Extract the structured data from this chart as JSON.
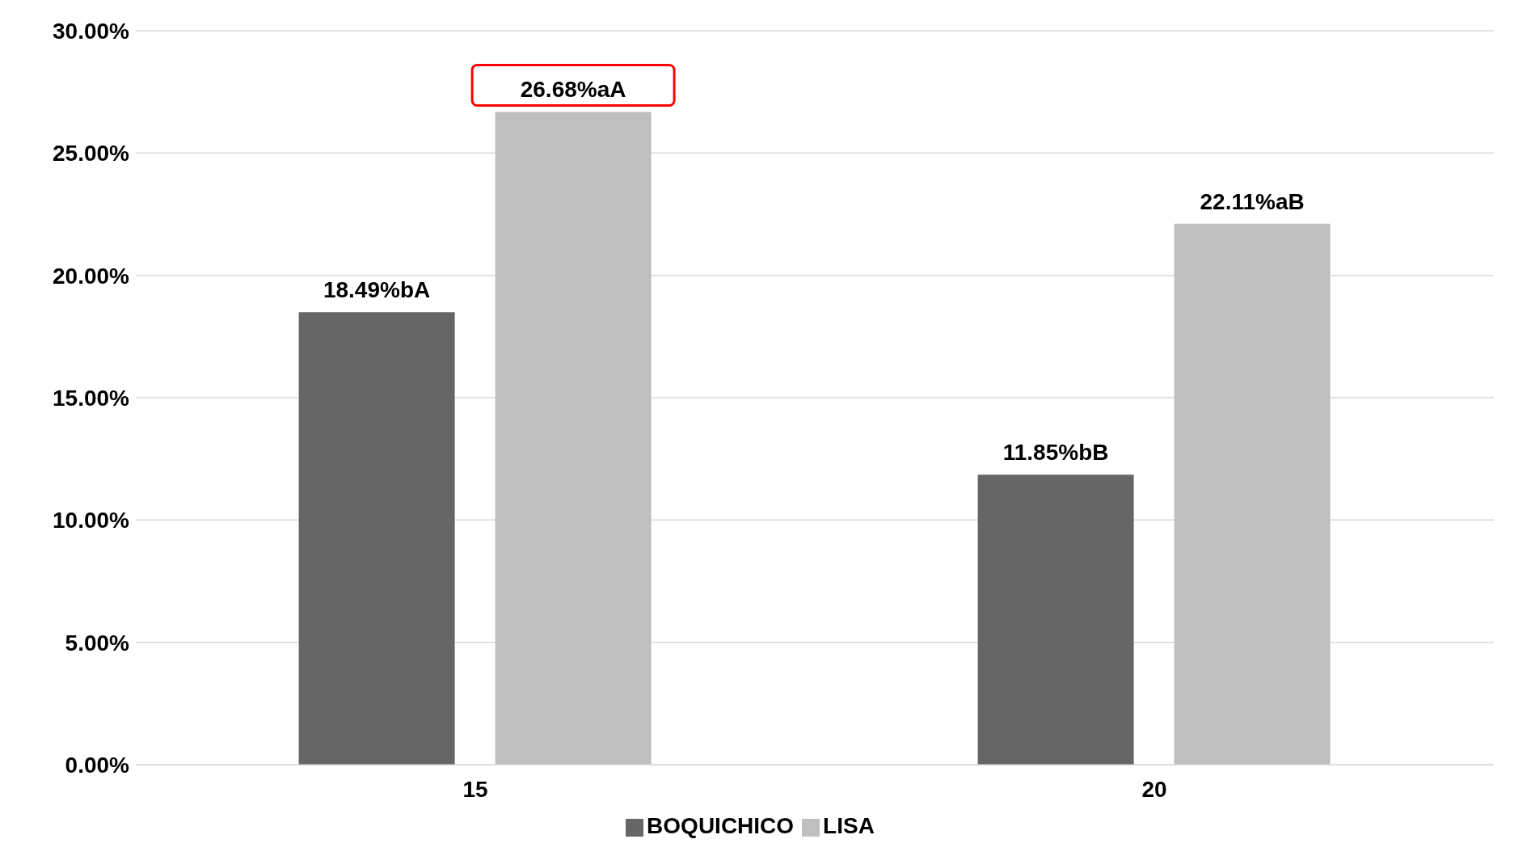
{
  "chart_data": {
    "type": "bar",
    "categories": [
      "15",
      "20"
    ],
    "series": [
      {
        "name": "BOQUICHICO",
        "color": "#666666",
        "values": [
          18.49,
          11.85
        ],
        "value_labels": [
          "18.49%bA",
          "11.85%bB"
        ]
      },
      {
        "name": "LISA",
        "color": "#bfbfbf",
        "values": [
          26.68,
          22.11
        ],
        "value_labels": [
          "26.68%aA",
          "22.11%aB"
        ]
      }
    ],
    "ylim": [
      0,
      30
    ],
    "yticks": [
      {
        "value": 0,
        "label": "0.00%"
      },
      {
        "value": 5,
        "label": "5.00%"
      },
      {
        "value": 10,
        "label": "10.00%"
      },
      {
        "value": 15,
        "label": "15.00%"
      },
      {
        "value": 20,
        "label": "20.00%"
      },
      {
        "value": 25,
        "label": "25.00%"
      },
      {
        "value": 30,
        "label": "30.00%"
      }
    ],
    "grid": "y",
    "legend": "bottom"
  }
}
